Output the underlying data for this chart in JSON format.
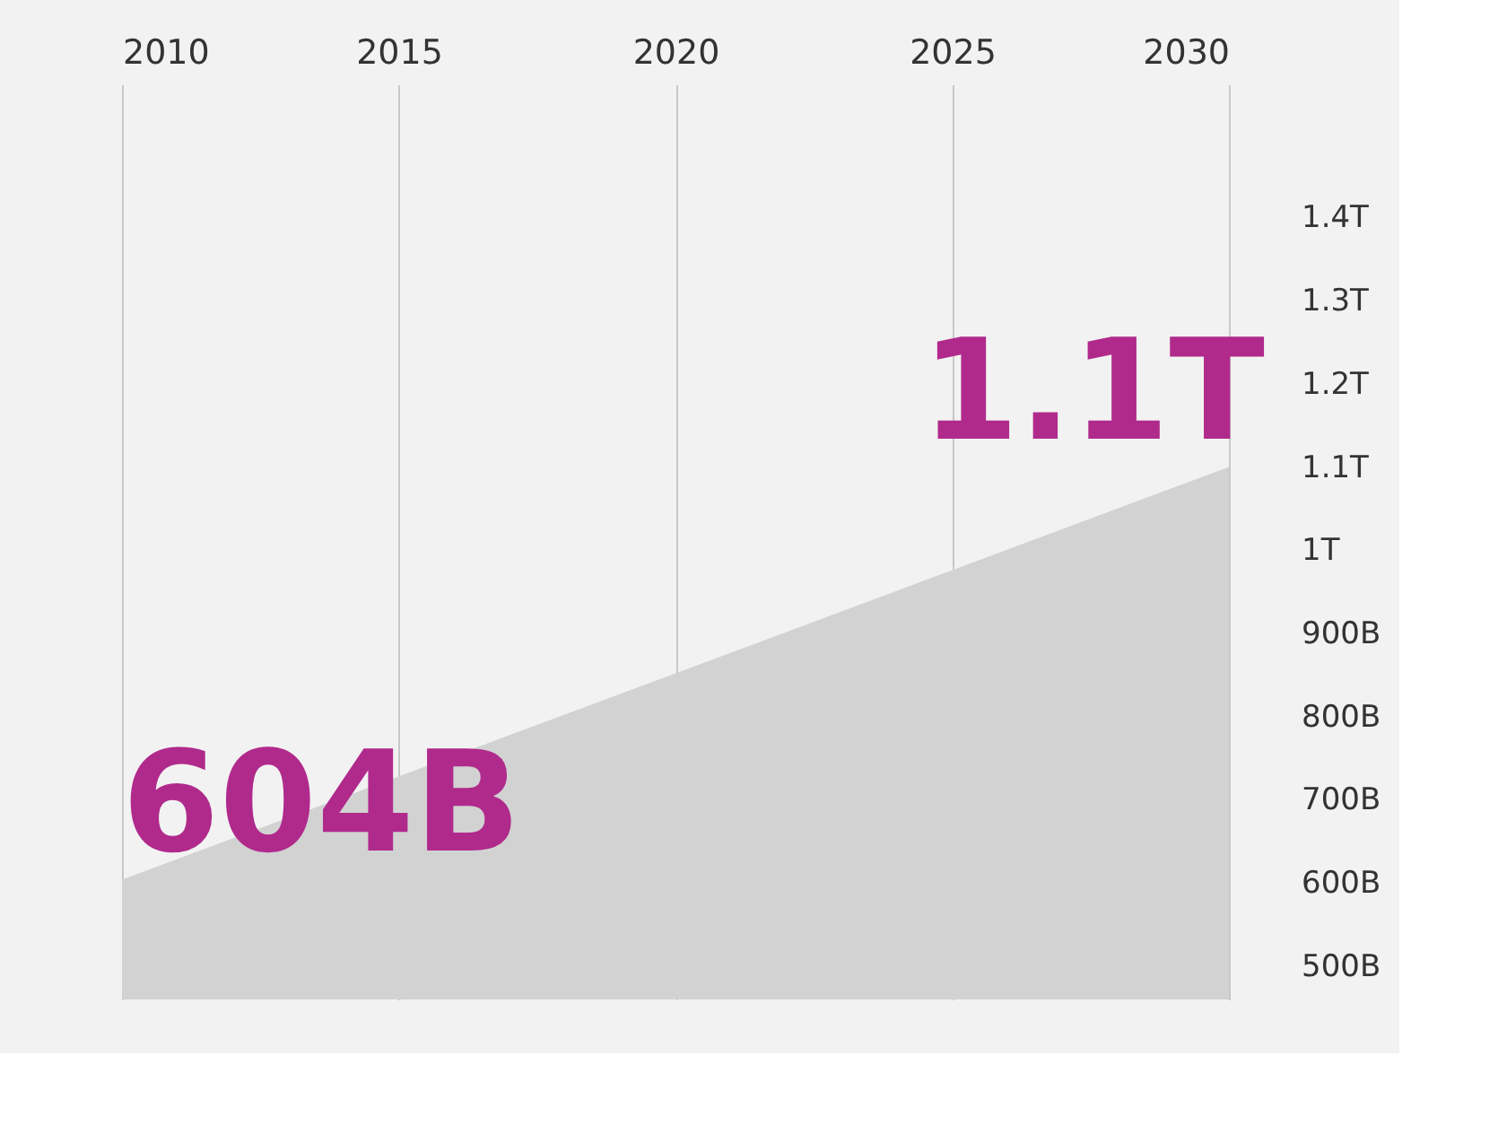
{
  "chart_data": {
    "type": "area",
    "x": [
      2010,
      2030
    ],
    "series": [
      {
        "color": "#d2d2d2",
        "values": [
          604000000000,
          1100000000000
        ]
      }
    ],
    "xlim": [
      2010,
      2030
    ],
    "xticks": [
      2010,
      2015,
      2020,
      2025,
      2030
    ],
    "ylim": [
      460000000000,
      1560000000000
    ],
    "yticks": [
      {
        "value": 500000000000,
        "label": "500B"
      },
      {
        "value": 600000000000,
        "label": "600B"
      },
      {
        "value": 700000000000,
        "label": "700B"
      },
      {
        "value": 800000000000,
        "label": "800B"
      },
      {
        "value": 900000000000,
        "label": "900B"
      },
      {
        "value": 1000000000000,
        "label": "1T"
      },
      {
        "value": 1100000000000,
        "label": "1.1T"
      },
      {
        "value": 1200000000000,
        "label": "1.2T"
      },
      {
        "value": 1300000000000,
        "label": "1.3T"
      },
      {
        "value": 1400000000000,
        "label": "1.4T"
      }
    ],
    "grid": "x",
    "annotations": [
      {
        "text": "604B",
        "x": 2010,
        "y": 604000000000
      },
      {
        "text": "1.1T",
        "x": 2030,
        "y": 1100000000000
      }
    ]
  }
}
